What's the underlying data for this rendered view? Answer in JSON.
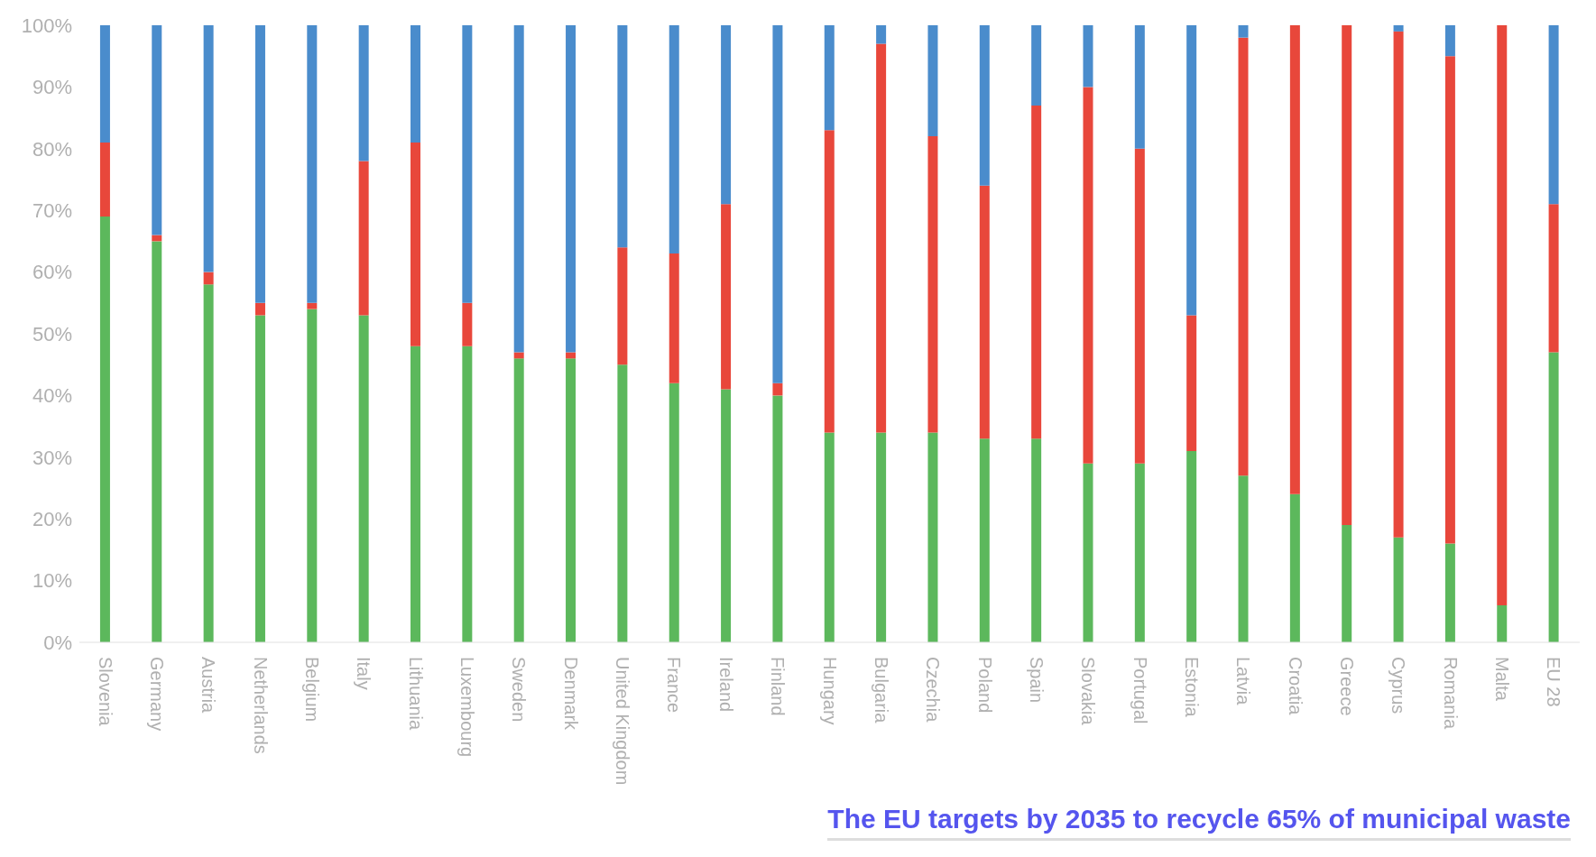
{
  "chart_data": {
    "type": "bar",
    "stacked": true,
    "categories": [
      "Slovenia",
      "Germany",
      "Austria",
      "Netherlands",
      "Belgium",
      "Italy",
      "Lithuania",
      "Luxembourg",
      "Sweden",
      "Denmark",
      "United Kingdom",
      "France",
      "Ireland",
      "Finland",
      "Hungary",
      "Bulgaria",
      "Czechia",
      "Poland",
      "Spain",
      "Slovakia",
      "Portugal",
      "Estonia",
      "Latvia",
      "Croatia",
      "Greece",
      "Cyprus",
      "Romania",
      "Malta",
      "EU 28"
    ],
    "series": [
      {
        "color": "#5cb85c",
        "values": [
          69,
          65,
          58,
          53,
          54,
          53,
          48,
          48,
          46,
          46,
          45,
          42,
          41,
          40,
          34,
          34,
          34,
          33,
          33,
          29,
          29,
          31,
          27,
          24,
          19,
          17,
          16,
          6,
          47
        ]
      },
      {
        "color": "#e8473b",
        "values": [
          12,
          1,
          2,
          2,
          1,
          25,
          33,
          7,
          1,
          1,
          19,
          21,
          30,
          2,
          49,
          63,
          48,
          41,
          54,
          61,
          51,
          22,
          71,
          76,
          81,
          82,
          79,
          94,
          24
        ]
      },
      {
        "color": "#4a8ccc",
        "values": [
          19,
          34,
          40,
          45,
          45,
          22,
          19,
          45,
          53,
          53,
          36,
          37,
          29,
          58,
          17,
          3,
          18,
          26,
          13,
          10,
          20,
          47,
          2,
          0,
          0,
          1,
          5,
          0,
          29
        ]
      }
    ],
    "ylim": [
      0,
      100
    ],
    "yticks": [
      {
        "value": 0,
        "label": "0%"
      },
      {
        "value": 10,
        "label": "10%"
      },
      {
        "value": 20,
        "label": "20%"
      },
      {
        "value": 30,
        "label": "30%"
      },
      {
        "value": 40,
        "label": "40%"
      },
      {
        "value": 50,
        "label": "50%"
      },
      {
        "value": 60,
        "label": "60%"
      },
      {
        "value": 70,
        "label": "70%"
      },
      {
        "value": 80,
        "label": "80%"
      },
      {
        "value": 90,
        "label": "90%"
      },
      {
        "value": 100,
        "label": "100%"
      }
    ],
    "grid": false,
    "legend": false,
    "annotations": [
      "The EU targets by 2035 to recycle 65% of municipal waste"
    ]
  }
}
